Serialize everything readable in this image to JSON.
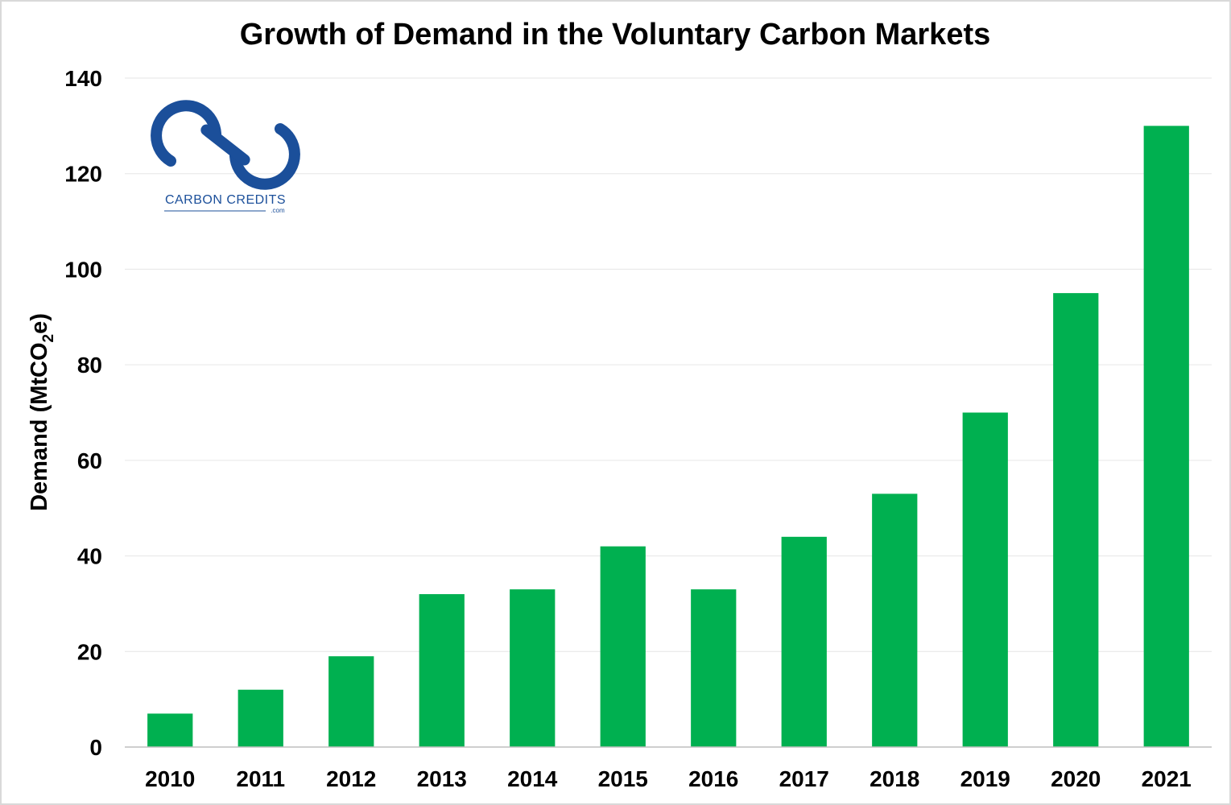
{
  "chart_data": {
    "type": "bar",
    "title": "Growth of Demand in the Voluntary Carbon Markets",
    "ylabel": {
      "main": "Demand  (MtCO",
      "sub": "2",
      "end": "e)"
    },
    "xlabel": "",
    "categories": [
      "2010",
      "2011",
      "2012",
      "2013",
      "2014",
      "2015",
      "2016",
      "2017",
      "2018",
      "2019",
      "2020",
      "2021"
    ],
    "values": [
      7,
      12,
      19,
      32,
      33,
      42,
      33,
      44,
      53,
      70,
      95,
      130
    ],
    "ylim": [
      0,
      140
    ],
    "yticks": [
      0,
      20,
      40,
      60,
      80,
      100,
      120,
      140
    ],
    "grid": true,
    "legend": "none",
    "bar_color": "#00b050"
  },
  "logo": {
    "text": "CARBON CREDITS",
    "suffix": ".com",
    "color": "#1b4f9a"
  }
}
